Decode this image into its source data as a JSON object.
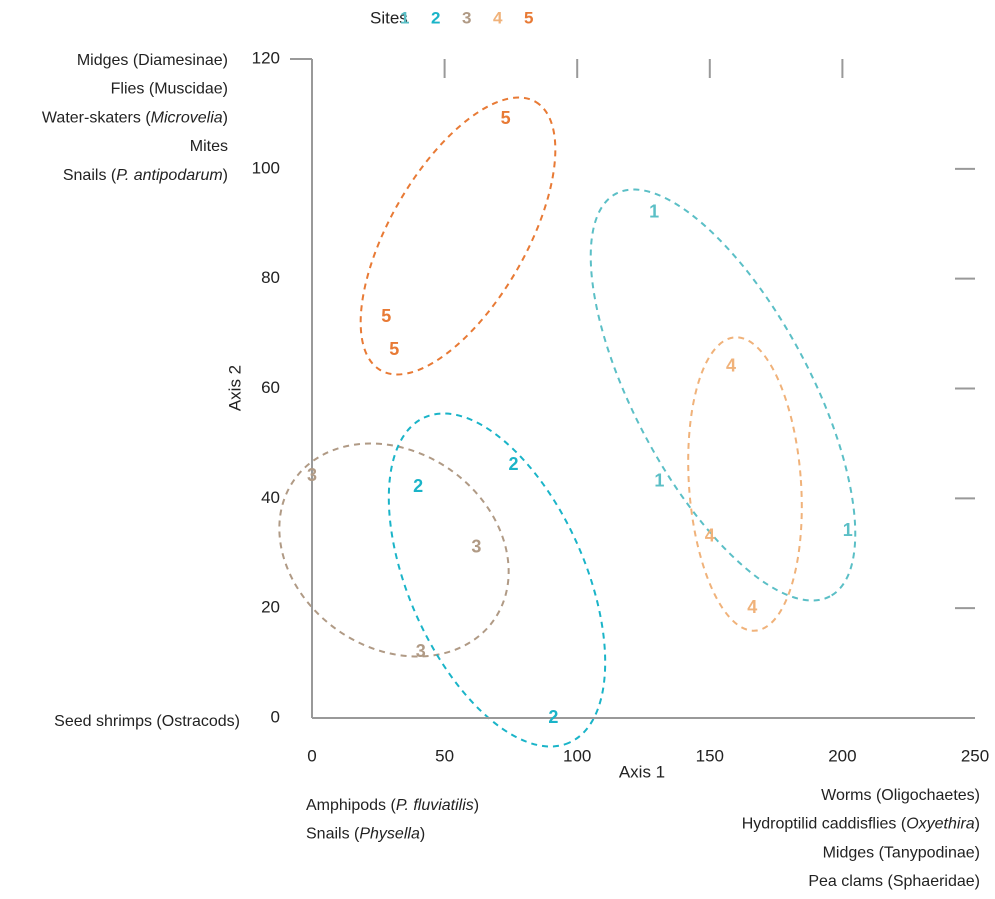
{
  "chart_data": {
    "type": "scatter",
    "legend_title": "Sites",
    "xlabel": "Axis 1",
    "ylabel": "Axis 2",
    "xlim": [
      0,
      250
    ],
    "ylim": [
      0,
      120
    ],
    "xticks": [
      0,
      50,
      100,
      150,
      200,
      250
    ],
    "yticks": [
      0,
      20,
      40,
      60,
      80,
      100,
      120
    ],
    "series": [
      {
        "name": "1",
        "color": "#5bbfc6",
        "x": [
          129,
          131,
          202
        ],
        "values": [
          92,
          43,
          34
        ]
      },
      {
        "name": "2",
        "color": "#1ab4c8",
        "x": [
          76,
          40,
          91
        ],
        "values": [
          46,
          42,
          0
        ]
      },
      {
        "name": "3",
        "color": "#b09a85",
        "x": [
          0,
          62,
          41
        ],
        "values": [
          44,
          31,
          12
        ]
      },
      {
        "name": "4",
        "color": "#f0b27a",
        "x": [
          158,
          150,
          166
        ],
        "values": [
          64,
          33,
          20
        ]
      },
      {
        "name": "5",
        "color": "#e87a35",
        "x": [
          73,
          28,
          31
        ],
        "values": [
          109,
          73,
          67
        ]
      }
    ],
    "annotations": {
      "y_high": [
        [
          "Midges (Diamesinae)"
        ],
        [
          "Flies (Muscidae)"
        ],
        [
          "Water-skaters (",
          "Microvelia",
          ")"
        ],
        [
          "Mites"
        ],
        [
          "Snails (",
          "P. antipodarum",
          ")"
        ]
      ],
      "y_low": [
        [
          "Seed shrimps (Ostracods)"
        ]
      ],
      "x_low": [
        [
          "Amphipods (",
          "P. fluviatilis",
          ")"
        ],
        [
          "Snails (",
          "Physella",
          ")"
        ]
      ],
      "x_high": [
        [
          "Worms (Oligochaetes)"
        ],
        [
          "Hydroptilid caddisflies (",
          "Oxyethira",
          ")"
        ],
        [
          "Midges (Tanypodinae)"
        ],
        [
          "Pea clams (Sphaeridae)"
        ]
      ]
    }
  }
}
